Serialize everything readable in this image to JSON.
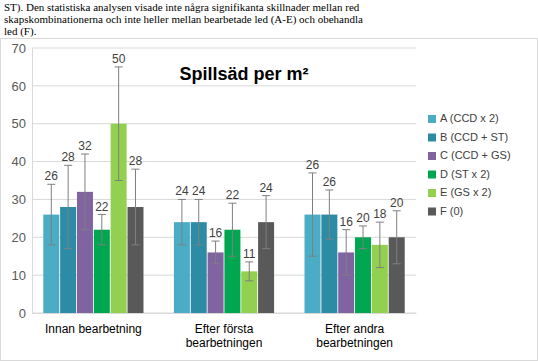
{
  "chart_data": {
    "type": "bar",
    "title": "Spillsäd per m²",
    "annotations": [
      "ST). Den statistiska analysen visade inte några signifikanta skillnader mellan red",
      "skapskombinationerna och inte heller mellan bearbetade led (A-E) och obehandla",
      "led (F)."
    ],
    "categories": [
      "Innan bearbetning",
      "Efter första\nbearbetningen",
      "Efter andra\nbearbetningen"
    ],
    "series": [
      {
        "name": "A (CCD x 2)",
        "color": "#4bacc6",
        "values": [
          26,
          24,
          26
        ],
        "errors": [
          8,
          6,
          11
        ]
      },
      {
        "name": "B (CCD + ST)",
        "color": "#2c8ca6",
        "values": [
          28,
          24,
          26
        ],
        "errors": [
          11,
          6,
          6.5
        ]
      },
      {
        "name": "C (CCD + GS)",
        "color": "#8064a2",
        "values": [
          32,
          16,
          16
        ],
        "errors": [
          10,
          3,
          6
        ]
      },
      {
        "name": "D (ST x 2)",
        "color": "#00a650",
        "values": [
          22,
          22,
          20
        ],
        "errors": [
          4,
          7,
          3
        ]
      },
      {
        "name": "E (GS x 2)",
        "color": "#92d050",
        "values": [
          50,
          11,
          18
        ],
        "errors": [
          15,
          2.5,
          6
        ]
      },
      {
        "name": "F (0)",
        "color": "#595959",
        "values": [
          28,
          24,
          20
        ],
        "errors": [
          10,
          7,
          7
        ]
      }
    ],
    "ylim": [
      0,
      70
    ],
    "yticks": [
      0,
      10,
      20,
      30,
      40,
      50,
      60,
      70
    ],
    "grid": true,
    "legend": "right",
    "data_labels": true
  }
}
